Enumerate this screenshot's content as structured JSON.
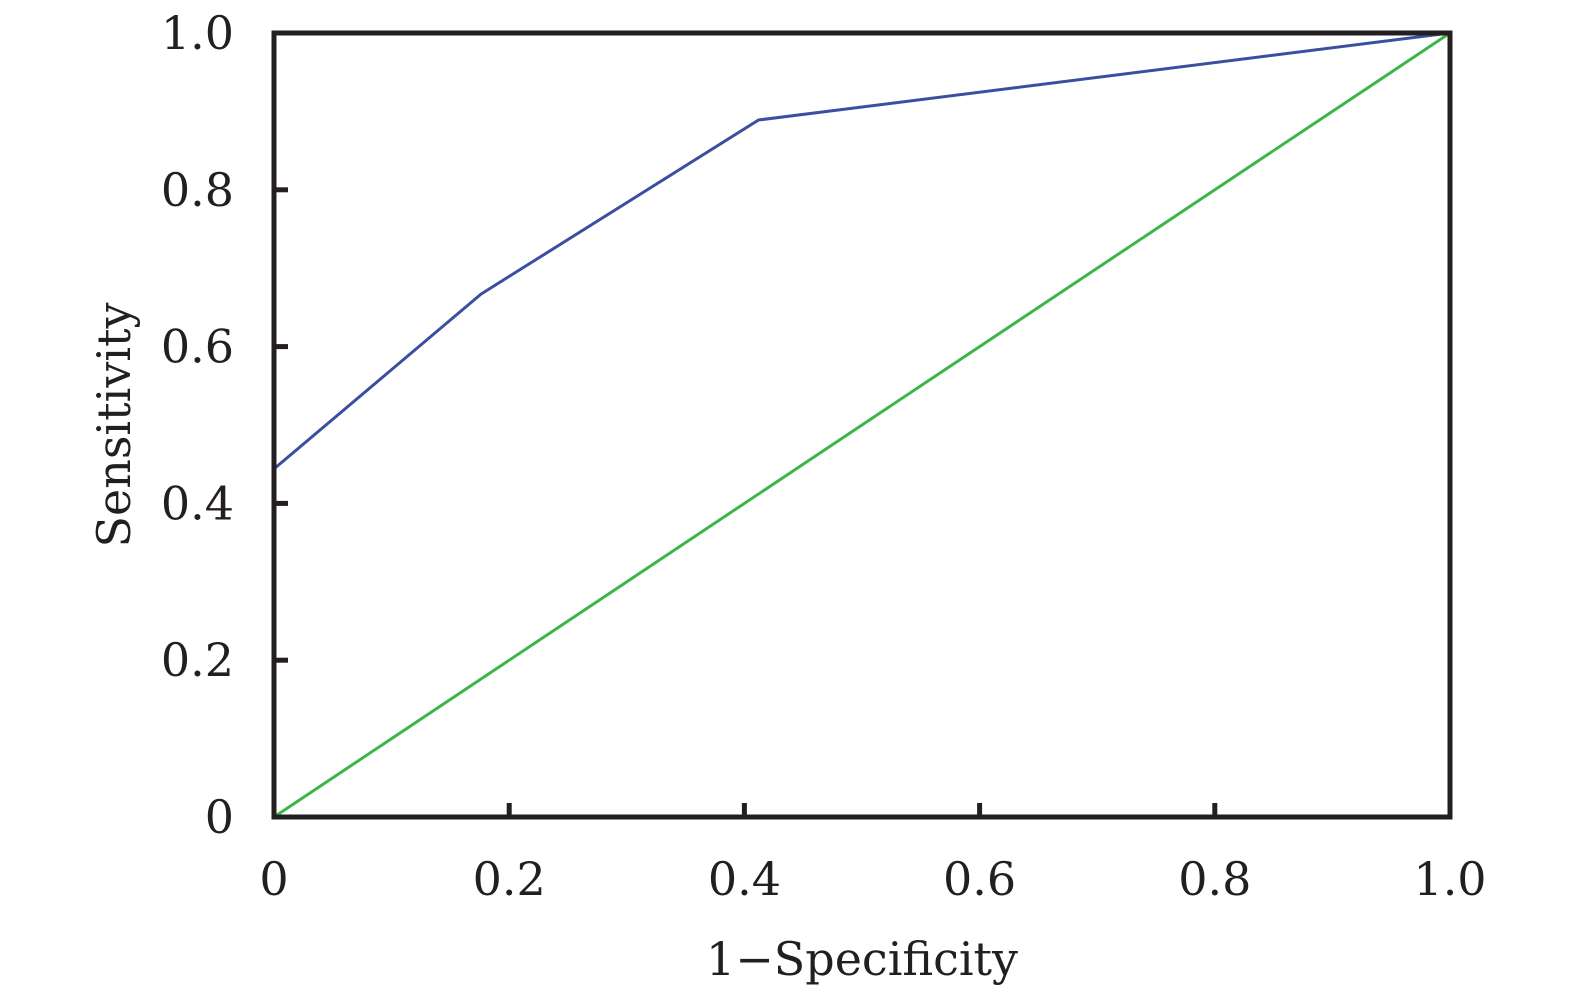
{
  "chart_data": {
    "type": "line",
    "title": "",
    "xlabel": "1−Specificity",
    "ylabel": "Sensitivity",
    "xlim": [
      0,
      1
    ],
    "ylim": [
      0,
      1
    ],
    "x_ticks": [
      {
        "value": 0,
        "label": "0"
      },
      {
        "value": 0.2,
        "label": "0.2"
      },
      {
        "value": 0.4,
        "label": "0.4"
      },
      {
        "value": 0.6,
        "label": "0.6"
      },
      {
        "value": 0.8,
        "label": "0.8"
      },
      {
        "value": 1.0,
        "label": "1.0"
      }
    ],
    "y_ticks": [
      {
        "value": 0,
        "label": "0"
      },
      {
        "value": 0.2,
        "label": "0.2"
      },
      {
        "value": 0.4,
        "label": "0.4"
      },
      {
        "value": 0.6,
        "label": "0.6"
      },
      {
        "value": 0.8,
        "label": "0.8"
      },
      {
        "value": 1.0,
        "label": "1.0"
      }
    ],
    "grid": false,
    "legend": "none",
    "series": [
      {
        "color": "#3a4fa0",
        "points": [
          [
            0,
            0
          ],
          [
            0,
            0.444
          ],
          [
            0.176,
            0.667
          ],
          [
            0.412,
            0.889
          ],
          [
            1.0,
            1.0
          ]
        ]
      },
      {
        "color": "#3db54a",
        "points": [
          [
            0,
            0
          ],
          [
            1.0,
            1.0
          ]
        ]
      }
    ]
  }
}
